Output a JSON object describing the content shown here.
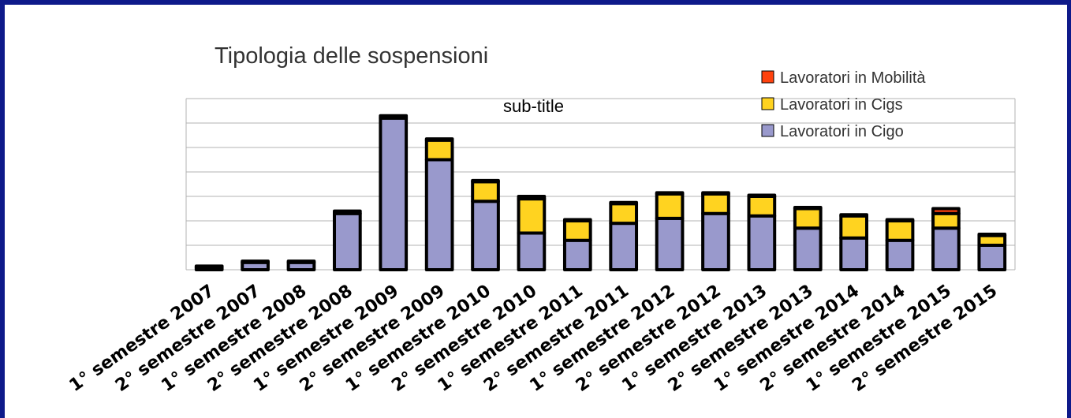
{
  "chart_data": {
    "type": "bar",
    "stacked": true,
    "title": "Tipologia delle sospensioni",
    "subtitle": "sub-title",
    "categories": [
      "1° semestre 2007",
      "2° semestre 2007",
      "1° semestre 2008",
      "2° semestre 2008",
      "1° semestre 2009",
      "2° semestre 2009",
      "1° semestre 2010",
      "2° semestre 2010",
      "1° semestre 2011",
      "2° semestre 2011",
      "1° semestre 2012",
      "2° semestre 2012",
      "1° semestre 2013",
      "2° semestre 2013",
      "1° semestre 2014",
      "2° semestre 2014",
      "1° semestre 2015",
      "2° semestre 2015"
    ],
    "series": [
      {
        "name": "Lavoratori in Cigo",
        "color": "#9999cc",
        "values": [
          0.1,
          0.3,
          0.3,
          2.3,
          6.2,
          4.5,
          2.8,
          1.5,
          1.2,
          1.9,
          2.1,
          2.3,
          2.2,
          1.7,
          1.3,
          1.2,
          1.7,
          1.0
        ]
      },
      {
        "name": "Lavoratori in Cigs",
        "color": "#ffd320",
        "values": [
          0.05,
          0.05,
          0.05,
          0.1,
          0.1,
          0.8,
          0.8,
          1.4,
          0.8,
          0.8,
          1.0,
          0.8,
          0.8,
          0.8,
          0.9,
          0.8,
          0.6,
          0.4
        ]
      },
      {
        "name": "Lavoratori in Mobilità",
        "color": "#ff420e",
        "values": [
          0.0,
          0.0,
          0.0,
          0.0,
          0.0,
          0.05,
          0.05,
          0.1,
          0.05,
          0.05,
          0.05,
          0.05,
          0.05,
          0.05,
          0.05,
          0.05,
          0.2,
          0.05
        ]
      }
    ],
    "ylim": [
      0,
      7
    ],
    "yticks": [
      0,
      1,
      2,
      3,
      4,
      5,
      6,
      7
    ],
    "grid": true,
    "legend": "top-right",
    "xlabel": "",
    "ylabel": ""
  }
}
